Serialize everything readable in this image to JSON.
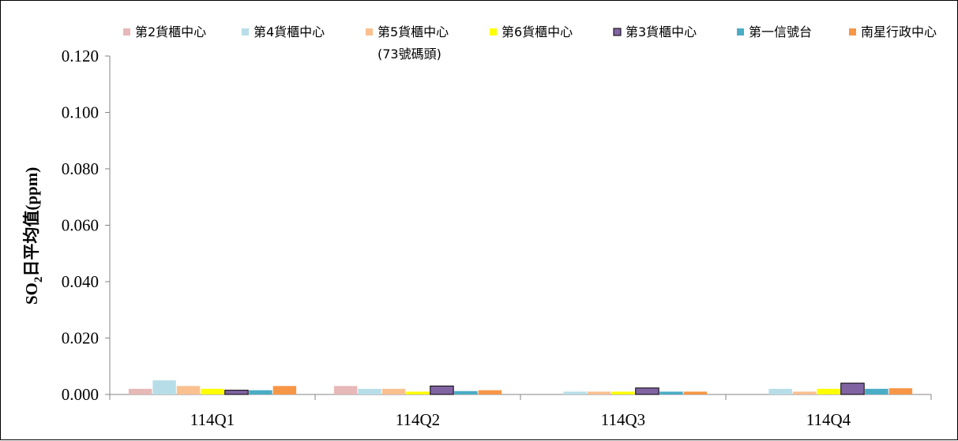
{
  "chart_data": {
    "type": "bar",
    "categories": [
      "114Q1",
      "114Q2",
      "114Q3",
      "114Q4"
    ],
    "ylabel": "SO2日平均值(ppm)",
    "ylabel_parts": {
      "base": "SO",
      "sub": "2",
      "rest": "日平均值(ppm)"
    },
    "ylim": [
      0,
      0.12
    ],
    "yticks": [
      "0.000",
      "0.020",
      "0.040",
      "0.060",
      "0.080",
      "0.100",
      "0.120"
    ],
    "ytick_values": [
      0,
      0.02,
      0.04,
      0.06,
      0.08,
      0.1,
      0.12
    ],
    "grid": false,
    "legend_position": "top",
    "series": [
      {
        "name": "第2貨櫃中心",
        "color": "#E6B8B7",
        "values": [
          0.002,
          0.003,
          null,
          null
        ]
      },
      {
        "name": "第4貨櫃中心",
        "color": "#B7DEE8",
        "values": [
          0.005,
          0.002,
          0.001,
          0.002
        ]
      },
      {
        "name": "第5貨櫃中心",
        "name_line2": "(73號碼頭)",
        "color": "#FAC090",
        "values": [
          0.003,
          0.002,
          0.001,
          0.001
        ]
      },
      {
        "name": "第6貨櫃中心",
        "color": "#FFFF00",
        "values": [
          0.002,
          0.001,
          0.001,
          0.002
        ]
      },
      {
        "name": "第3貨櫃中心",
        "color": "#8064A2",
        "outline": "#000000",
        "values": [
          0.0015,
          0.003,
          0.0023,
          0.004
        ]
      },
      {
        "name": "第一信號台",
        "color": "#4BACC6",
        "values": [
          0.0015,
          0.0012,
          0.001,
          0.002
        ]
      },
      {
        "name": "南星行政中心",
        "color": "#F79646",
        "values": [
          0.003,
          0.0015,
          0.001,
          0.0022
        ]
      }
    ]
  }
}
